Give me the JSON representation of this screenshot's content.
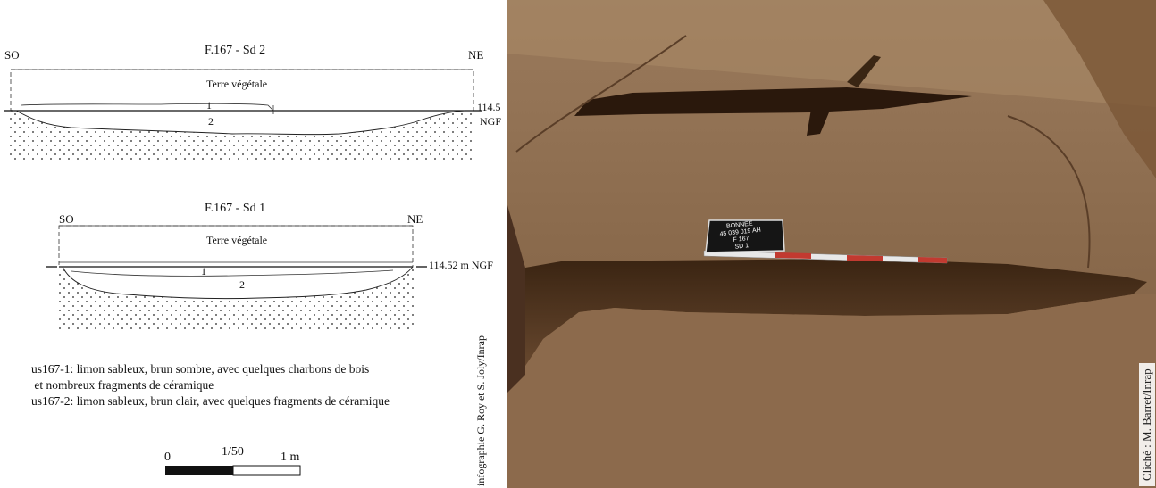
{
  "section_sd2": {
    "title": "F.167 - Sd 2",
    "orientation_left": "SO",
    "orientation_right": "NE",
    "topsoil_label": "Terre végétale",
    "layer1_label": "1",
    "layer2_label": "2",
    "elevation_value": "114.5",
    "elevation_unit": "NGF"
  },
  "section_sd1": {
    "title": "F.167 - Sd 1",
    "orientation_left": "SO",
    "orientation_right": "NE",
    "topsoil_label": "Terre végétale",
    "layer1_label": "1",
    "layer2_label": "2",
    "elevation_label": "114.52 m NGF"
  },
  "legend": {
    "lines": [
      "us167-1: limon sableux, brun sombre, avec quelques charbons de bois",
      " et nombreux fragments de céramique",
      "us167-2: limon sableux, brun clair, avec quelques fragments de céramique"
    ]
  },
  "scale_bar": {
    "start_label": "0",
    "ratio_label": "1/50",
    "end_label": "1 m"
  },
  "credits": {
    "drawing": "infographie G. Roy et S. Joly/Inrap",
    "photo": "Cliché : M. Barret/Inrap"
  },
  "photo": {
    "board_lines": [
      "BONNEE",
      "45 039 019 AH",
      "F 167",
      "SD 1"
    ]
  }
}
